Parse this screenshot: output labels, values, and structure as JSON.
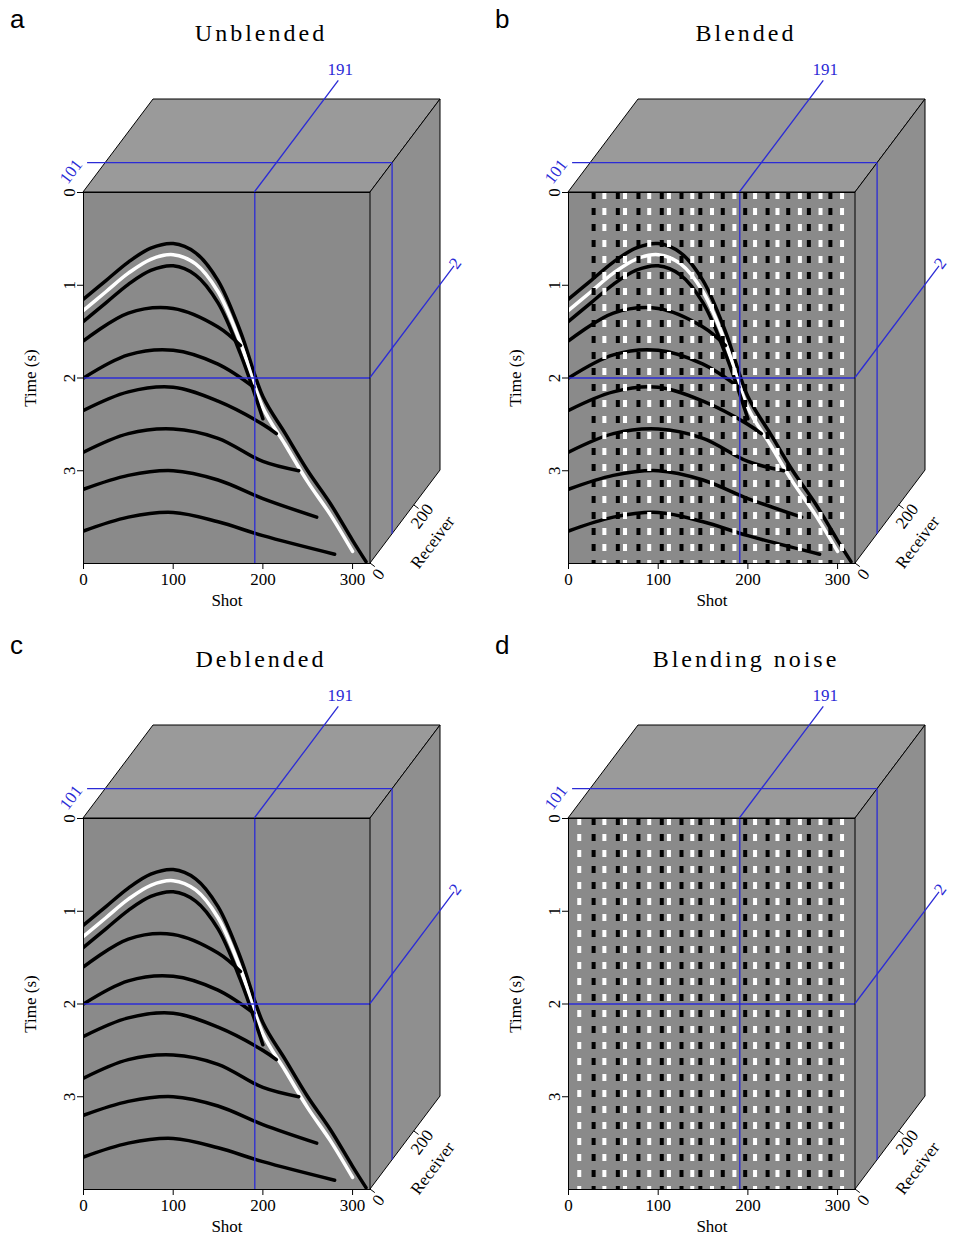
{
  "chart_data": [
    {
      "type": "cube",
      "panel": "a",
      "title": "Unblended",
      "xlabel": "Shot",
      "ylabel": "Time (s)",
      "zlabel": "Receiver",
      "xlim": [
        0,
        320
      ],
      "ylim": [
        0,
        4
      ],
      "zlim": [
        0,
        320
      ],
      "xticks": [
        0,
        100,
        200,
        300
      ],
      "yticks": [
        0,
        1,
        2,
        3
      ],
      "zticks": [
        0,
        200
      ],
      "slices": {
        "x": 191,
        "y": 2,
        "z": 101
      },
      "series": [
        {
          "type": "line",
          "color": "#000000",
          "x": [
            0,
            25,
            50,
            75,
            100,
            125,
            150,
            175,
            200,
            225,
            250,
            275,
            300,
            315
          ],
          "values": [
            1.15,
            0.95,
            0.75,
            0.6,
            0.55,
            0.65,
            0.95,
            1.5,
            2.2,
            2.6,
            3.0,
            3.35,
            3.75,
            3.98
          ]
        },
        {
          "type": "line",
          "color": "#ffffff",
          "x": [
            0,
            25,
            50,
            75,
            100,
            125,
            150,
            175,
            200,
            225,
            250,
            275,
            300
          ],
          "values": [
            1.27,
            1.07,
            0.87,
            0.72,
            0.67,
            0.77,
            1.07,
            1.62,
            2.32,
            2.72,
            3.12,
            3.47,
            3.87
          ]
        },
        {
          "type": "line",
          "color": "#000000",
          "x": [
            0,
            25,
            50,
            75,
            100,
            125,
            150,
            175,
            200
          ],
          "values": [
            1.39,
            1.19,
            0.99,
            0.84,
            0.79,
            0.89,
            1.19,
            1.74,
            2.44
          ]
        },
        {
          "type": "line",
          "color": "#000000",
          "x": [
            0,
            50,
            100,
            150,
            175
          ],
          "values": [
            1.6,
            1.3,
            1.25,
            1.45,
            1.65
          ]
        },
        {
          "type": "line",
          "color": "#000000",
          "x": [
            0,
            50,
            100,
            150,
            190
          ],
          "values": [
            2.0,
            1.75,
            1.7,
            1.85,
            2.1
          ]
        },
        {
          "type": "line",
          "color": "#000000",
          "x": [
            0,
            50,
            100,
            150,
            200,
            215
          ],
          "values": [
            2.35,
            2.15,
            2.1,
            2.25,
            2.5,
            2.6
          ]
        },
        {
          "type": "line",
          "color": "#000000",
          "x": [
            0,
            50,
            100,
            150,
            200,
            240
          ],
          "values": [
            2.8,
            2.6,
            2.55,
            2.65,
            2.9,
            3.0
          ]
        },
        {
          "type": "line",
          "color": "#000000",
          "x": [
            0,
            50,
            100,
            150,
            200,
            260
          ],
          "values": [
            3.2,
            3.05,
            3.0,
            3.1,
            3.3,
            3.5
          ]
        },
        {
          "type": "line",
          "color": "#000000",
          "x": [
            0,
            50,
            100,
            150,
            200,
            280
          ],
          "values": [
            3.65,
            3.5,
            3.45,
            3.55,
            3.7,
            3.9
          ]
        }
      ]
    },
    {
      "type": "cube",
      "panel": "b",
      "title": "Blended",
      "xlabel": "Shot",
      "ylabel": "Time (s)",
      "zlabel": "Receiver",
      "xlim": [
        0,
        320
      ],
      "ylim": [
        0,
        4
      ],
      "zlim": [
        0,
        320
      ],
      "xticks": [
        0,
        100,
        200,
        300
      ],
      "yticks": [
        0,
        1,
        2,
        3
      ],
      "zticks": [
        0,
        200
      ],
      "slices": {
        "x": 191,
        "y": 2,
        "z": 101
      },
      "series": [
        {
          "type": "line",
          "color": "#000000",
          "x": [
            0,
            25,
            50,
            75,
            100,
            125,
            150,
            175,
            200,
            225,
            250,
            275,
            300,
            315
          ],
          "values": [
            1.15,
            0.95,
            0.75,
            0.6,
            0.55,
            0.65,
            0.95,
            1.5,
            2.2,
            2.6,
            3.0,
            3.35,
            3.75,
            3.98
          ]
        },
        {
          "type": "line",
          "color": "#ffffff",
          "x": [
            0,
            25,
            50,
            75,
            100,
            125,
            150,
            175,
            200,
            225,
            250,
            275,
            300
          ],
          "values": [
            1.27,
            1.07,
            0.87,
            0.72,
            0.67,
            0.77,
            1.07,
            1.62,
            2.32,
            2.72,
            3.12,
            3.47,
            3.87
          ]
        },
        {
          "type": "line",
          "color": "#000000",
          "x": [
            0,
            25,
            50,
            75,
            100,
            125,
            150,
            175,
            200
          ],
          "values": [
            1.39,
            1.19,
            0.99,
            0.84,
            0.79,
            0.89,
            1.19,
            1.74,
            2.44
          ]
        },
        {
          "type": "line",
          "color": "#000000",
          "x": [
            0,
            50,
            100,
            150,
            175
          ],
          "values": [
            1.6,
            1.3,
            1.25,
            1.45,
            1.65
          ]
        },
        {
          "type": "line",
          "color": "#000000",
          "x": [
            0,
            50,
            100,
            150,
            190
          ],
          "values": [
            2.0,
            1.75,
            1.7,
            1.85,
            2.1
          ]
        },
        {
          "type": "line",
          "color": "#000000",
          "x": [
            0,
            50,
            100,
            150,
            200,
            215
          ],
          "values": [
            2.35,
            2.15,
            2.1,
            2.25,
            2.5,
            2.6
          ]
        },
        {
          "type": "line",
          "color": "#000000",
          "x": [
            0,
            50,
            100,
            150,
            200,
            240
          ],
          "values": [
            2.8,
            2.6,
            2.55,
            2.65,
            2.9,
            3.0
          ]
        },
        {
          "type": "line",
          "color": "#000000",
          "x": [
            0,
            50,
            100,
            150,
            200,
            260
          ],
          "values": [
            3.2,
            3.05,
            3.0,
            3.1,
            3.3,
            3.5
          ]
        },
        {
          "type": "line",
          "color": "#000000",
          "x": [
            0,
            50,
            100,
            150,
            200,
            280
          ],
          "values": [
            3.65,
            3.5,
            3.45,
            3.55,
            3.7,
            3.9
          ]
        },
        {
          "type": "rule",
          "x": [
            28,
            40,
            55,
            63,
            78,
            90,
            104,
            112,
            126,
            138,
            147,
            160,
            172,
            185,
            197,
            208,
            222,
            233,
            245,
            258,
            268,
            281,
            292,
            305
          ],
          "colors": [
            "#000000",
            "#ffffff",
            "#000000",
            "#ffffff",
            "#000000",
            "#ffffff",
            "#000000",
            "#ffffff",
            "#000000",
            "#ffffff",
            "#000000",
            "#ffffff",
            "#000000",
            "#ffffff",
            "#000000",
            "#ffffff",
            "#000000",
            "#ffffff",
            "#000000",
            "#ffffff",
            "#000000",
            "#ffffff",
            "#000000",
            "#ffffff"
          ]
        }
      ]
    },
    {
      "type": "cube",
      "panel": "c",
      "title": "Deblended",
      "xlabel": "Shot",
      "ylabel": "Time (s)",
      "zlabel": "Receiver",
      "xlim": [
        0,
        320
      ],
      "ylim": [
        0,
        4
      ],
      "zlim": [
        0,
        320
      ],
      "xticks": [
        0,
        100,
        200,
        300
      ],
      "yticks": [
        0,
        1,
        2,
        3
      ],
      "zticks": [
        0,
        200
      ],
      "slices": {
        "x": 191,
        "y": 2,
        "z": 101
      },
      "series": [
        {
          "type": "line",
          "color": "#000000",
          "x": [
            0,
            25,
            50,
            75,
            100,
            125,
            150,
            175,
            200,
            225,
            250,
            275,
            300,
            315
          ],
          "values": [
            1.15,
            0.95,
            0.75,
            0.6,
            0.55,
            0.65,
            0.95,
            1.5,
            2.2,
            2.6,
            3.0,
            3.35,
            3.75,
            3.98
          ]
        },
        {
          "type": "line",
          "color": "#ffffff",
          "x": [
            0,
            25,
            50,
            75,
            100,
            125,
            150,
            175,
            200,
            225,
            250,
            275,
            300
          ],
          "values": [
            1.27,
            1.07,
            0.87,
            0.72,
            0.67,
            0.77,
            1.07,
            1.62,
            2.32,
            2.72,
            3.12,
            3.47,
            3.87
          ]
        },
        {
          "type": "line",
          "color": "#000000",
          "x": [
            0,
            25,
            50,
            75,
            100,
            125,
            150,
            175,
            200
          ],
          "values": [
            1.39,
            1.19,
            0.99,
            0.84,
            0.79,
            0.89,
            1.19,
            1.74,
            2.44
          ]
        },
        {
          "type": "line",
          "color": "#000000",
          "x": [
            0,
            50,
            100,
            150,
            175
          ],
          "values": [
            1.6,
            1.3,
            1.25,
            1.45,
            1.65
          ]
        },
        {
          "type": "line",
          "color": "#000000",
          "x": [
            0,
            50,
            100,
            150,
            190
          ],
          "values": [
            2.0,
            1.75,
            1.7,
            1.85,
            2.1
          ]
        },
        {
          "type": "line",
          "color": "#000000",
          "x": [
            0,
            50,
            100,
            150,
            200,
            215
          ],
          "values": [
            2.35,
            2.15,
            2.1,
            2.25,
            2.5,
            2.6
          ]
        },
        {
          "type": "line",
          "color": "#000000",
          "x": [
            0,
            50,
            100,
            150,
            200,
            240
          ],
          "values": [
            2.8,
            2.6,
            2.55,
            2.65,
            2.9,
            3.0
          ]
        },
        {
          "type": "line",
          "color": "#000000",
          "x": [
            0,
            50,
            100,
            150,
            200,
            260
          ],
          "values": [
            3.2,
            3.05,
            3.0,
            3.1,
            3.3,
            3.5
          ]
        },
        {
          "type": "line",
          "color": "#000000",
          "x": [
            0,
            50,
            100,
            150,
            200,
            280
          ],
          "values": [
            3.65,
            3.5,
            3.45,
            3.55,
            3.7,
            3.9
          ]
        }
      ]
    },
    {
      "type": "cube",
      "panel": "d",
      "title": "Blending noise",
      "xlabel": "Shot",
      "ylabel": "Time (s)",
      "zlabel": "Receiver",
      "xlim": [
        0,
        320
      ],
      "ylim": [
        0,
        4
      ],
      "zlim": [
        0,
        320
      ],
      "xticks": [
        0,
        100,
        200,
        300
      ],
      "yticks": [
        0,
        1,
        2,
        3
      ],
      "zticks": [
        0,
        200
      ],
      "slices": {
        "x": 191,
        "y": 2,
        "z": 101
      },
      "series": [
        {
          "type": "rule",
          "x": [
            12,
            28,
            40,
            55,
            63,
            78,
            90,
            104,
            112,
            126,
            138,
            147,
            160,
            172,
            185,
            197,
            208,
            222,
            233,
            245,
            258,
            268,
            281,
            292,
            305
          ],
          "colors": [
            "#ffffff",
            "#000000",
            "#ffffff",
            "#000000",
            "#ffffff",
            "#000000",
            "#ffffff",
            "#000000",
            "#ffffff",
            "#000000",
            "#ffffff",
            "#000000",
            "#ffffff",
            "#000000",
            "#ffffff",
            "#000000",
            "#ffffff",
            "#000000",
            "#ffffff",
            "#000000",
            "#ffffff",
            "#000000",
            "#ffffff",
            "#000000",
            "#ffffff"
          ]
        }
      ]
    }
  ]
}
